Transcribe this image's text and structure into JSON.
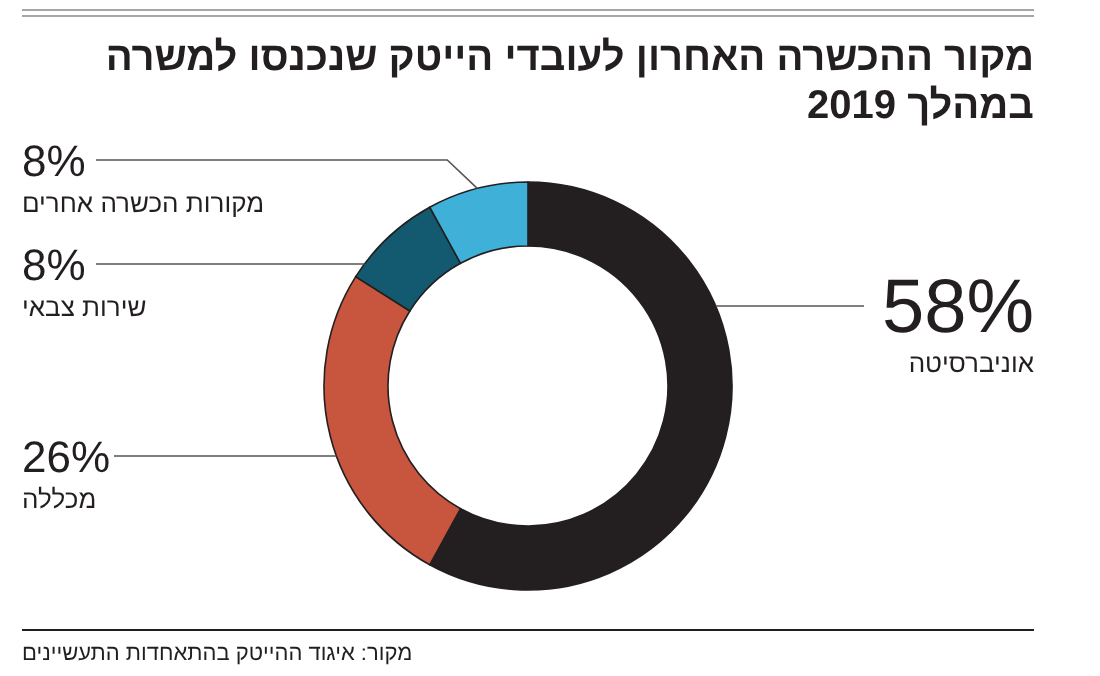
{
  "chart_data": {
    "type": "donut",
    "title": "מקור ההכשרה האחרון לעובדי הייטק שנכנסו למשרה במהלך 2019",
    "categories": [
      "אוניברסיטה",
      "מכללה",
      "שירות צבאי",
      "מקורות הכשרה אחרים"
    ],
    "values": [
      58,
      26,
      8,
      8
    ],
    "colors": [
      "#231f20",
      "#c8553d",
      "#135a70",
      "#3fb1d9"
    ],
    "value_labels": [
      "58%",
      "26%",
      "8%",
      "8%"
    ],
    "annotations": [
      "מקור: איגוד ההייטק בהתאחדות התעשיינים"
    ]
  }
}
